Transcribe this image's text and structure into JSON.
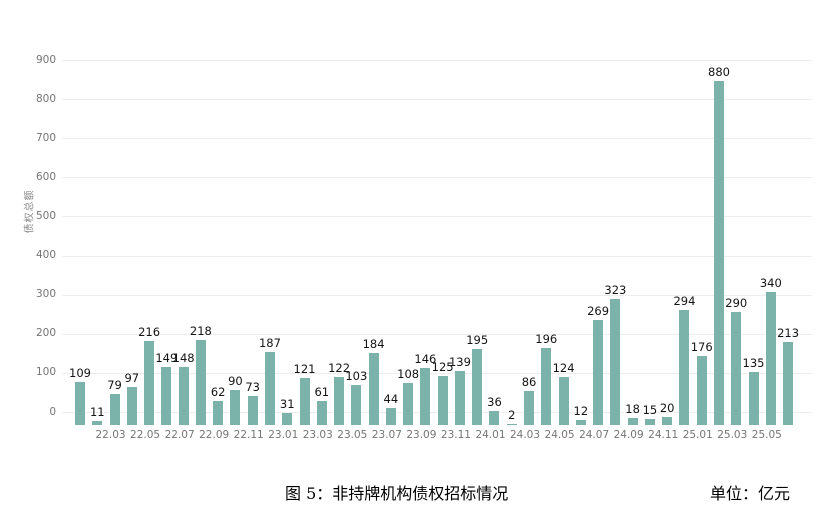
{
  "caption": {
    "title": "图 5：非持牌机构债权招标情况",
    "unit": "单位：亿元"
  },
  "colors": {
    "bar": "#7bb3ab",
    "grid": "#ededed",
    "value_label": "#141414",
    "tick_label": "#757575"
  },
  "chart_data": {
    "type": "bar",
    "title": "图 5：非持牌机构债权招标情况",
    "unit_label": "单位：亿元",
    "ylabel": "债权总额",
    "xlabel": "",
    "legend": "none",
    "grid": "horizontal",
    "ylim": [
      0,
      950
    ],
    "y_ticks": [
      0,
      100,
      200,
      300,
      400,
      500,
      600,
      700,
      800,
      900
    ],
    "categories": [
      "22.01",
      "22.02",
      "22.03",
      "22.04",
      "22.05",
      "22.06",
      "22.07",
      "22.08",
      "22.09",
      "22.10",
      "22.11",
      "22.12",
      "23.01",
      "23.02",
      "23.03",
      "23.04",
      "23.05",
      "23.06",
      "23.07",
      "23.08",
      "23.09",
      "23.10",
      "23.11",
      "23.12",
      "24.01",
      "24.02",
      "24.03",
      "24.04",
      "24.05",
      "24.06",
      "24.07",
      "24.08",
      "24.09",
      "24.10",
      "24.11",
      "24.12",
      "25.01",
      "25.02",
      "25.03",
      "25.04",
      "25.05",
      "25.06"
    ],
    "values": [
      109,
      11,
      79,
      97,
      216,
      149,
      148,
      218,
      62,
      90,
      73,
      187,
      31,
      121,
      61,
      122,
      103,
      184,
      44,
      108,
      146,
      125,
      139,
      195,
      36,
      2,
      86,
      196,
      124,
      12,
      269,
      323,
      18,
      15,
      20,
      294,
      176,
      880,
      290,
      135,
      340,
      213
    ],
    "x_tick_labels": [
      "22.03",
      "22.05",
      "22.07",
      "22.09",
      "22.11",
      "23.01",
      "23.03",
      "23.05",
      "23.07",
      "23.09",
      "23.11",
      "24.01",
      "24.03",
      "24.05",
      "24.07",
      "24.09",
      "24.11",
      "25.01",
      "25.03",
      "25.05"
    ]
  }
}
